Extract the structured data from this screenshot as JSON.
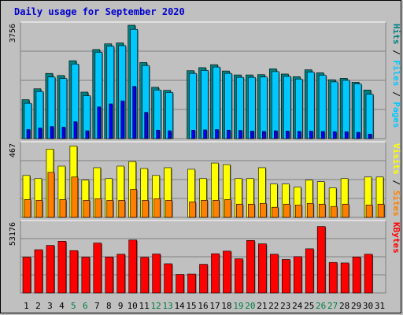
{
  "title": "Daily usage for September 2020",
  "colors": {
    "hits": "#008080",
    "hits_light": "#00a0a0",
    "files": "#00c8ff",
    "pages": "#0000ff",
    "visits": "#ffff00",
    "sites": "#ff8000",
    "kbytes": "#ff0000",
    "weekend_day": "#008040",
    "weekday": "#000000",
    "panel_bg": "#c0c0c0"
  },
  "chart_data": [
    {
      "type": "bar",
      "name": "hits-files-pages",
      "categories": [
        "1",
        "2",
        "3",
        "4",
        "5",
        "6",
        "7",
        "8",
        "9",
        "10",
        "11",
        "12",
        "13",
        "14",
        "15",
        "16",
        "17",
        "18",
        "19",
        "20",
        "21",
        "22",
        "23",
        "24",
        "25",
        "26",
        "27",
        "28",
        "29",
        "30",
        "31"
      ],
      "ymax_label": "3756",
      "ylim": [
        0,
        3756
      ],
      "axis_labels": [
        "Pages",
        "Files",
        "Hits"
      ],
      "series": [
        {
          "name": "Hits",
          "values": [
            1290,
            1650,
            2160,
            2090,
            2580,
            1540,
            2950,
            3140,
            3170,
            3756,
            2520,
            1700,
            1600,
            null,
            2250,
            2350,
            2450,
            2240,
            2110,
            2110,
            2120,
            2310,
            2140,
            2050,
            2280,
            2180,
            1950,
            2000,
            1870,
            1610,
            null
          ]
        },
        {
          "name": "Files",
          "values": [
            1170,
            1560,
            2040,
            1990,
            2470,
            1420,
            2860,
            3060,
            3080,
            3620,
            2420,
            1610,
            1530,
            null,
            2160,
            2260,
            2370,
            2160,
            2030,
            2030,
            2040,
            2220,
            2060,
            1970,
            2200,
            2100,
            1880,
            1930,
            1810,
            1470,
            null
          ]
        },
        {
          "name": "Pages",
          "values": [
            300,
            350,
            400,
            380,
            560,
            260,
            1050,
            1150,
            1250,
            1730,
            870,
            280,
            260,
            null,
            280,
            290,
            300,
            280,
            270,
            250,
            240,
            260,
            250,
            240,
            250,
            240,
            230,
            230,
            210,
            150,
            null
          ]
        }
      ]
    },
    {
      "type": "bar",
      "name": "visits-sites",
      "categories": [
        "1",
        "2",
        "3",
        "4",
        "5",
        "6",
        "7",
        "8",
        "9",
        "10",
        "11",
        "12",
        "13",
        "14",
        "15",
        "16",
        "17",
        "18",
        "19",
        "20",
        "21",
        "22",
        "23",
        "24",
        "25",
        "26",
        "27",
        "28",
        "29",
        "30",
        "31"
      ],
      "ymax_label": "467",
      "ylim": [
        0,
        467
      ],
      "axis_labels": [
        "Sites",
        "Visits"
      ],
      "series": [
        {
          "name": "Visits",
          "values": [
            270,
            250,
            440,
            330,
            460,
            240,
            320,
            250,
            330,
            360,
            315,
            270,
            320,
            null,
            310,
            250,
            350,
            340,
            250,
            250,
            320,
            215,
            215,
            195,
            240,
            230,
            190,
            250,
            null,
            260,
            260
          ]
        },
        {
          "name": "Sites",
          "values": [
            115,
            110,
            290,
            115,
            260,
            110,
            120,
            110,
            110,
            180,
            110,
            120,
            110,
            null,
            100,
            110,
            110,
            115,
            85,
            85,
            90,
            65,
            85,
            80,
            90,
            85,
            70,
            85,
            null,
            80,
            85
          ]
        }
      ]
    },
    {
      "type": "bar",
      "name": "kbytes",
      "categories": [
        "1",
        "2",
        "3",
        "4",
        "5",
        "6",
        "7",
        "8",
        "9",
        "10",
        "11",
        "12",
        "13",
        "14",
        "15",
        "16",
        "17",
        "18",
        "19",
        "20",
        "21",
        "22",
        "23",
        "24",
        "25",
        "26",
        "27",
        "28",
        "29",
        "30",
        "31"
      ],
      "ymax_label": "53176",
      "ylim": [
        0,
        53176
      ],
      "axis_labels": [
        "KBytes"
      ],
      "series": [
        {
          "name": "KBytes",
          "values": [
            27500,
            33200,
            36500,
            39700,
            32500,
            27500,
            38300,
            27600,
            29700,
            40600,
            27400,
            29900,
            22400,
            14200,
            14500,
            22000,
            30100,
            32100,
            26200,
            40300,
            37700,
            29700,
            25700,
            27900,
            33900,
            51000,
            23400,
            23000,
            27600,
            29700,
            null
          ]
        }
      ]
    }
  ],
  "days": [
    {
      "label": "1",
      "weekend": false
    },
    {
      "label": "2",
      "weekend": false
    },
    {
      "label": "3",
      "weekend": false
    },
    {
      "label": "4",
      "weekend": false
    },
    {
      "label": "5",
      "weekend": true
    },
    {
      "label": "6",
      "weekend": true
    },
    {
      "label": "7",
      "weekend": false
    },
    {
      "label": "8",
      "weekend": false
    },
    {
      "label": "9",
      "weekend": false
    },
    {
      "label": "10",
      "weekend": false
    },
    {
      "label": "11",
      "weekend": false
    },
    {
      "label": "12",
      "weekend": true
    },
    {
      "label": "13",
      "weekend": true
    },
    {
      "label": "14",
      "weekend": false
    },
    {
      "label": "15",
      "weekend": false
    },
    {
      "label": "16",
      "weekend": false
    },
    {
      "label": "17",
      "weekend": false
    },
    {
      "label": "18",
      "weekend": false
    },
    {
      "label": "19",
      "weekend": true
    },
    {
      "label": "20",
      "weekend": true
    },
    {
      "label": "21",
      "weekend": false
    },
    {
      "label": "22",
      "weekend": false
    },
    {
      "label": "23",
      "weekend": false
    },
    {
      "label": "24",
      "weekend": false
    },
    {
      "label": "25",
      "weekend": false
    },
    {
      "label": "26",
      "weekend": true
    },
    {
      "label": "27",
      "weekend": true
    },
    {
      "label": "28",
      "weekend": false
    },
    {
      "label": "29",
      "weekend": false
    },
    {
      "label": "30",
      "weekend": false
    },
    {
      "label": "31",
      "weekend": false
    }
  ]
}
